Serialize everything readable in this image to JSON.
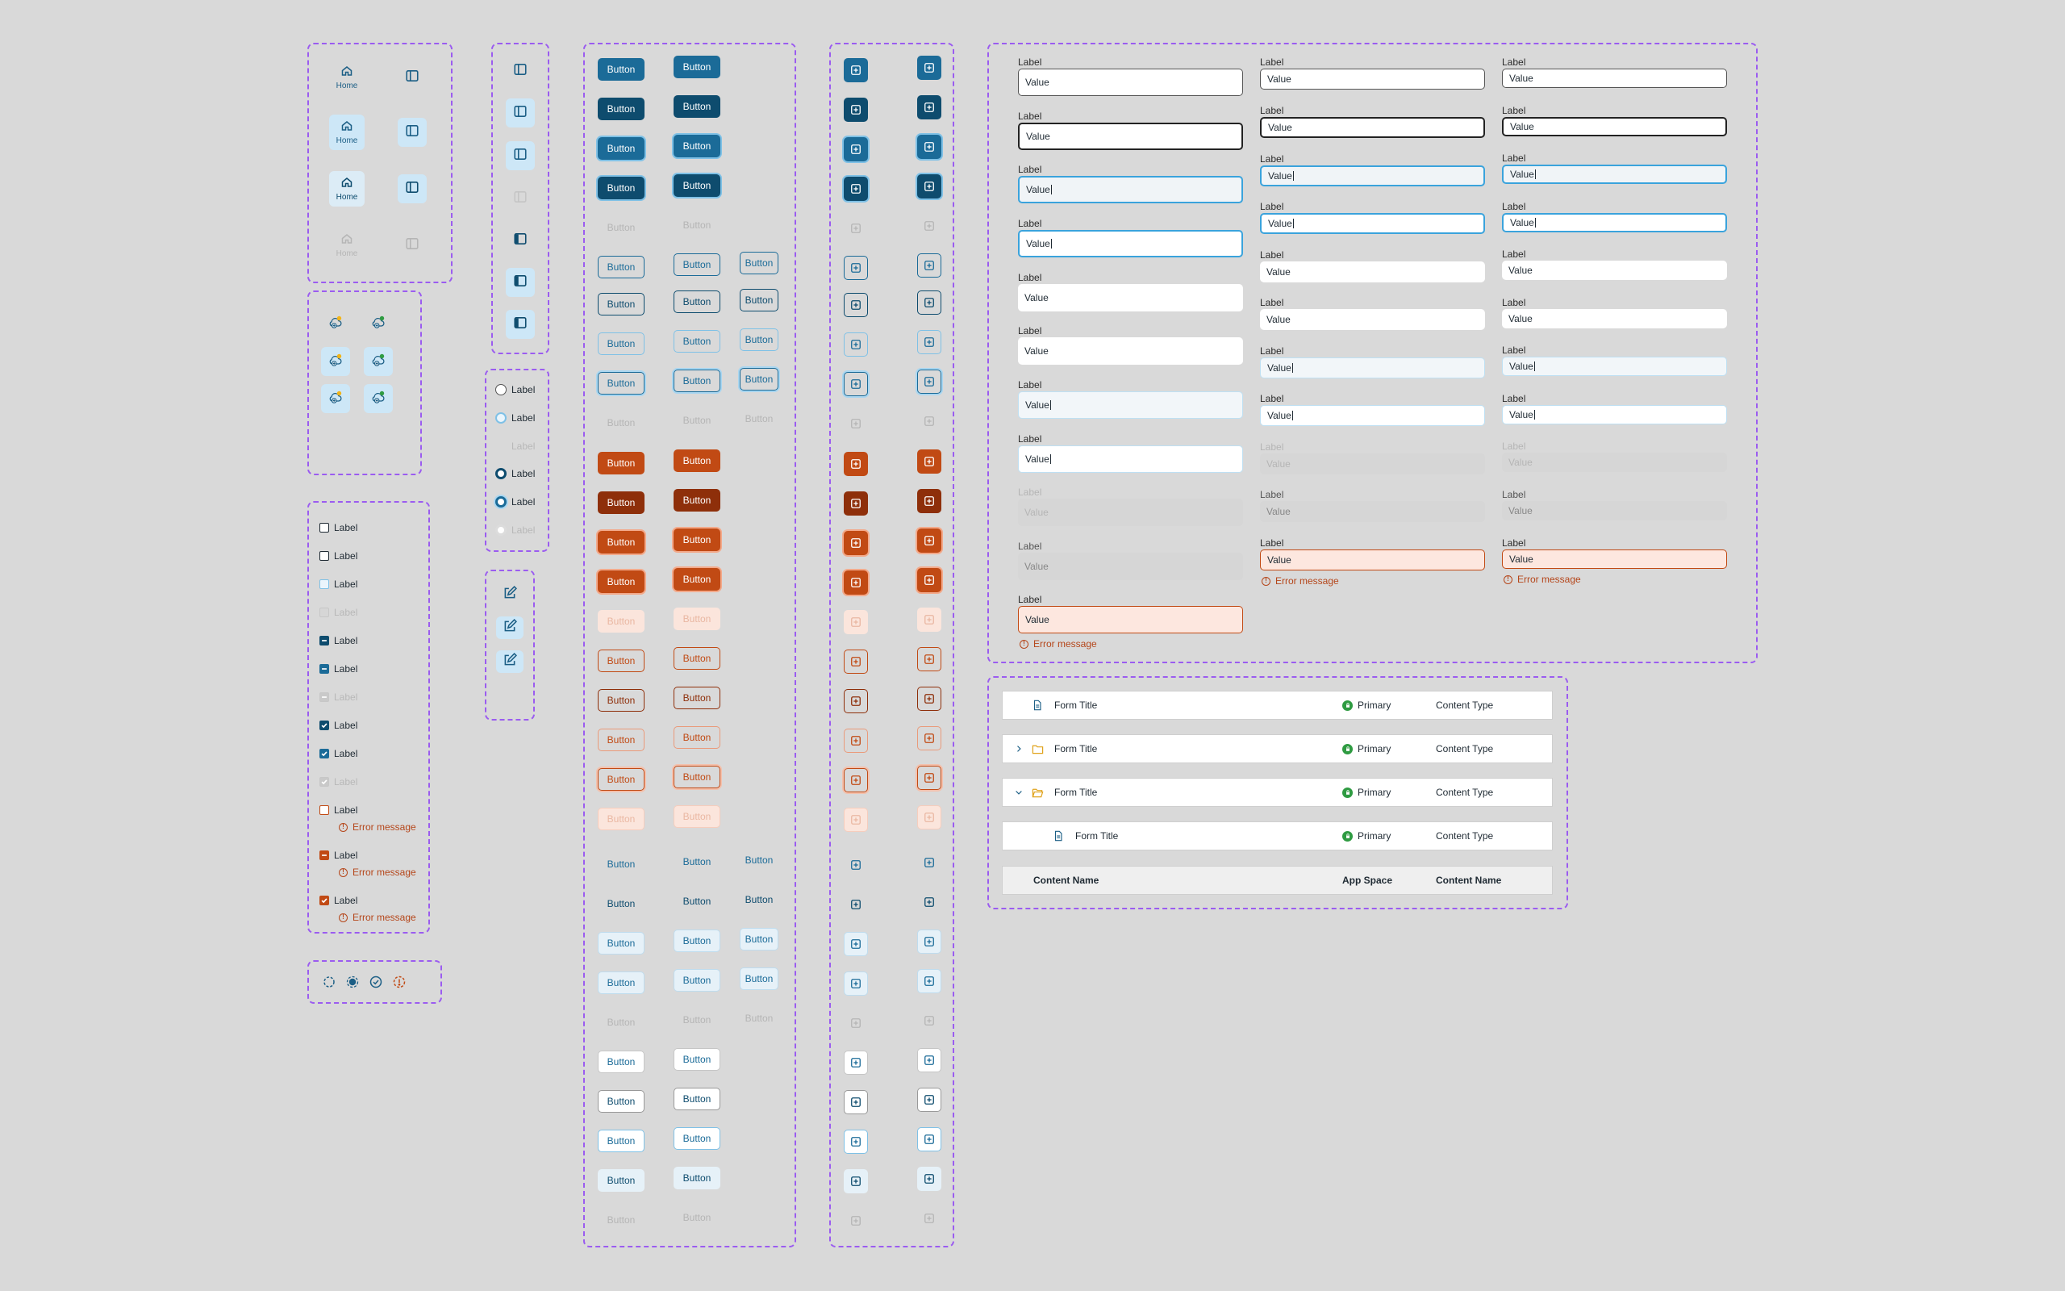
{
  "colors": {
    "frame": "#9b5cf0",
    "primary": "#1b6b98",
    "primary_dark": "#0e4c6e",
    "danger": "#c14a14",
    "danger_dark": "#8e2f0a",
    "success": "#2f9b42",
    "focus": "#3aa3dc",
    "error_bg": "#fde7df"
  },
  "nav": {
    "home_label": "Home",
    "icons": [
      "home-icon",
      "sidebar-icon"
    ]
  },
  "cloud_icons": [
    "cloud-add-warning-icon",
    "cloud-add-success-icon"
  ],
  "checkbox": {
    "label": "Label",
    "error": "Error message"
  },
  "radio": {
    "label": "Label"
  },
  "status_icons": [
    "dashed-circle-icon",
    "filled-circle-icon",
    "check-circle-icon",
    "warning-dashed-circle-icon"
  ],
  "edit_icon": "edit-icon",
  "button": {
    "label": "Button"
  },
  "icon_button": "add-square-icon",
  "field": {
    "label": "Label",
    "value": "Value",
    "error": "Error message"
  },
  "table": {
    "rows": [
      {
        "title": "Form Title",
        "badge": "Primary",
        "type": "Content Type"
      },
      {
        "title": "Form Title",
        "badge": "Primary",
        "type": "Content Type"
      },
      {
        "title": "Form Title",
        "badge": "Primary",
        "type": "Content Type"
      },
      {
        "title": "Form Title",
        "badge": "Primary",
        "type": "Content Type"
      }
    ],
    "header": {
      "name": "Content Name",
      "space": "App Space",
      "content": "Content Name"
    }
  }
}
